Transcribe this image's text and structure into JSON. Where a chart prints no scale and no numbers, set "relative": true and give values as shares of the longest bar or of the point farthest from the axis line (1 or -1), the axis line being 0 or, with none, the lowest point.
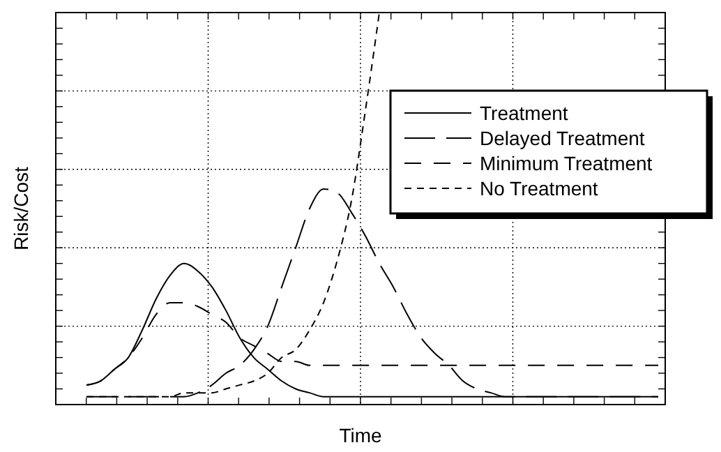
{
  "chart_data": {
    "type": "line",
    "relative": true,
    "xlabel": "Time",
    "ylabel": "Risk/Cost",
    "grid": true,
    "legend": "right",
    "categories": [
      null,
      null,
      null,
      null,
      null,
      null,
      null,
      null,
      null,
      null,
      null,
      null,
      null,
      null,
      null,
      null,
      null,
      null,
      null,
      null,
      null,
      null,
      null,
      null,
      null,
      null,
      null,
      null,
      null,
      null,
      null,
      null,
      null,
      null,
      null,
      null,
      null,
      null,
      null,
      null,
      null,
      null
    ],
    "series": [
      {
        "name": "Treatment",
        "color": "#000000",
        "line_style": "solid",
        "values": [
          0.05,
          0.06,
          0.09,
          0.12,
          0.19,
          0.27,
          0.33,
          0.36,
          0.34,
          0.3,
          0.24,
          0.17,
          0.12,
          0.09,
          0.06,
          0.04,
          0.03,
          0.02,
          0.02,
          0.02,
          0.02,
          0.02,
          0.02,
          0.02,
          0.02,
          0.02,
          0.02,
          0.02,
          0.02,
          0.02,
          0.02,
          0.02,
          0.02,
          0.02,
          0.02,
          0.02,
          0.02,
          0.02,
          0.02,
          0.02,
          0.02,
          0.02
        ]
      },
      {
        "name": "Delayed Treatment",
        "color": "#000000",
        "line_style": "dashed",
        "values": [
          0.02,
          0.02,
          0.02,
          0.02,
          0.02,
          0.02,
          0.02,
          0.02,
          0.03,
          0.05,
          0.08,
          0.1,
          0.14,
          0.2,
          0.3,
          0.4,
          0.5,
          0.55,
          0.54,
          0.49,
          0.43,
          0.36,
          0.3,
          0.23,
          0.17,
          0.13,
          0.1,
          0.06,
          0.04,
          0.03,
          0.02,
          0.02,
          0.02,
          0.02,
          0.02,
          0.02,
          0.02,
          0.02,
          0.02,
          0.02,
          0.02,
          0.02
        ]
      },
      {
        "name": "Minimum Treatment",
        "color": "#000000",
        "line_style": "dashed",
        "values": [
          0.05,
          0.06,
          0.09,
          0.12,
          0.17,
          0.23,
          0.26,
          0.26,
          0.25,
          0.23,
          0.21,
          0.17,
          0.15,
          0.13,
          0.11,
          0.11,
          0.1,
          0.1,
          0.1,
          0.1,
          0.1,
          0.1,
          0.1,
          0.1,
          0.1,
          0.1,
          0.1,
          0.1,
          0.1,
          0.1,
          0.1,
          0.1,
          0.1,
          0.1,
          0.1,
          0.1,
          0.1,
          0.1,
          0.1,
          0.1,
          0.1,
          0.1
        ]
      },
      {
        "name": "No Treatment",
        "color": "#000000",
        "line_style": "dotted",
        "values": [
          0.02,
          0.02,
          0.02,
          0.02,
          0.02,
          0.02,
          0.02,
          0.03,
          0.03,
          0.03,
          0.04,
          0.05,
          0.06,
          0.08,
          0.12,
          0.14,
          0.19,
          0.26,
          0.37,
          0.52,
          0.75,
          1,
          null,
          null,
          null,
          null,
          null,
          null,
          null,
          null,
          null,
          null,
          null,
          null,
          null,
          null,
          null,
          null,
          null,
          null,
          null,
          null
        ]
      }
    ]
  }
}
